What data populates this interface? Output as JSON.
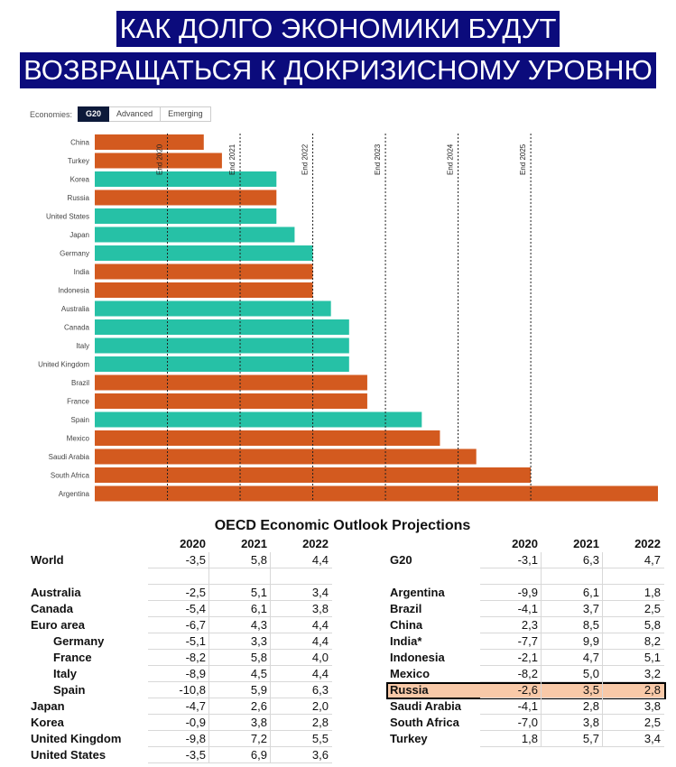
{
  "title": {
    "line1": "КАК ДОЛГО ЭКОНОМИКИ БУДУТ",
    "line2": "ВОЗВРАЩАТЬСЯ К ДОКРИЗИСНОМУ УРОВНЮ"
  },
  "economies": {
    "label": "Economies:",
    "options": [
      "G20",
      "Advanced",
      "Emerging"
    ],
    "selected": "G20"
  },
  "colors": {
    "emerging": "#d35a1f",
    "advanced": "#26c1a6",
    "title_bg": "#0b0b7c",
    "highlight": "#f8c9a8"
  },
  "chart_data": {
    "type": "bar",
    "orientation": "horizontal",
    "note": "",
    "categories": [
      "China",
      "Turkey",
      "Korea",
      "Russia",
      "United States",
      "Japan",
      "Germany",
      "India",
      "Indonesia",
      "Australia",
      "Canada",
      "Italy",
      "United Kingdom",
      "Brazil",
      "France",
      "Spain",
      "Mexico",
      "Saudi Arabia",
      "South Africa",
      "Argentina"
    ],
    "groups": [
      "emerging",
      "emerging",
      "advanced",
      "emerging",
      "advanced",
      "advanced",
      "advanced",
      "emerging",
      "emerging",
      "advanced",
      "advanced",
      "advanced",
      "advanced",
      "emerging",
      "emerging",
      "advanced",
      "emerging",
      "emerging",
      "emerging",
      "emerging"
    ],
    "values": [
      2020.5,
      2020.75,
      2021.5,
      2021.5,
      2021.5,
      2021.75,
      2022.0,
      2022.0,
      2022.0,
      2022.25,
      2022.5,
      2022.5,
      2022.5,
      2022.75,
      2022.75,
      2023.5,
      2023.75,
      2024.25,
      2025.0,
      2026.75
    ],
    "xlim": [
      2019.0,
      2026.75
    ],
    "reference_lines": [
      {
        "x": 2020,
        "label": "End 2020"
      },
      {
        "x": 2021,
        "label": "End 2021"
      },
      {
        "x": 2022,
        "label": "End 2022"
      },
      {
        "x": 2023,
        "label": "End 2023"
      },
      {
        "x": 2024,
        "label": "End 2024"
      },
      {
        "x": 2025,
        "label": "End 2025"
      }
    ]
  },
  "table": {
    "title": "OECD Economic Outlook Projections",
    "years": [
      "2020",
      "2021",
      "2022"
    ],
    "left": [
      {
        "name": "World",
        "values": [
          "-3,5",
          "5,8",
          "4,4"
        ],
        "indent": false,
        "gap_after": true
      },
      {
        "name": "Australia",
        "values": [
          "-2,5",
          "5,1",
          "3,4"
        ],
        "indent": false
      },
      {
        "name": "Canada",
        "values": [
          "-5,4",
          "6,1",
          "3,8"
        ],
        "indent": false
      },
      {
        "name": "Euro area",
        "values": [
          "-6,7",
          "4,3",
          "4,4"
        ],
        "indent": false
      },
      {
        "name": "Germany",
        "values": [
          "-5,1",
          "3,3",
          "4,4"
        ],
        "indent": true
      },
      {
        "name": "France",
        "values": [
          "-8,2",
          "5,8",
          "4,0"
        ],
        "indent": true
      },
      {
        "name": "Italy",
        "values": [
          "-8,9",
          "4,5",
          "4,4"
        ],
        "indent": true
      },
      {
        "name": "Spain",
        "values": [
          "-10,8",
          "5,9",
          "6,3"
        ],
        "indent": true
      },
      {
        "name": "Japan",
        "values": [
          "-4,7",
          "2,6",
          "2,0"
        ],
        "indent": false
      },
      {
        "name": "Korea",
        "values": [
          "-0,9",
          "3,8",
          "2,8"
        ],
        "indent": false
      },
      {
        "name": "United Kingdom",
        "values": [
          "-9,8",
          "7,2",
          "5,5"
        ],
        "indent": false
      },
      {
        "name": "United States",
        "values": [
          "-3,5",
          "6,9",
          "3,6"
        ],
        "indent": false
      }
    ],
    "right": [
      {
        "name": "G20",
        "values": [
          "-3,1",
          "6,3",
          "4,7"
        ],
        "gap_after": true
      },
      {
        "name": "Argentina",
        "values": [
          "-9,9",
          "6,1",
          "1,8"
        ]
      },
      {
        "name": "Brazil",
        "values": [
          "-4,1",
          "3,7",
          "2,5"
        ]
      },
      {
        "name": "China",
        "values": [
          "2,3",
          "8,5",
          "5,8"
        ]
      },
      {
        "name": "India*",
        "values": [
          "-7,7",
          "9,9",
          "8,2"
        ]
      },
      {
        "name": "Indonesia",
        "values": [
          "-2,1",
          "4,7",
          "5,1"
        ]
      },
      {
        "name": "Mexico",
        "values": [
          "-8,2",
          "5,0",
          "3,2"
        ]
      },
      {
        "name": "Russia",
        "values": [
          "-2,6",
          "3,5",
          "2,8"
        ],
        "highlight": true
      },
      {
        "name": "Saudi Arabia",
        "values": [
          "-4,1",
          "2,8",
          "3,8"
        ]
      },
      {
        "name": "South Africa",
        "values": [
          "-7,0",
          "3,8",
          "2,5"
        ]
      },
      {
        "name": "Turkey",
        "values": [
          "1,8",
          "5,7",
          "3,4"
        ]
      }
    ]
  }
}
